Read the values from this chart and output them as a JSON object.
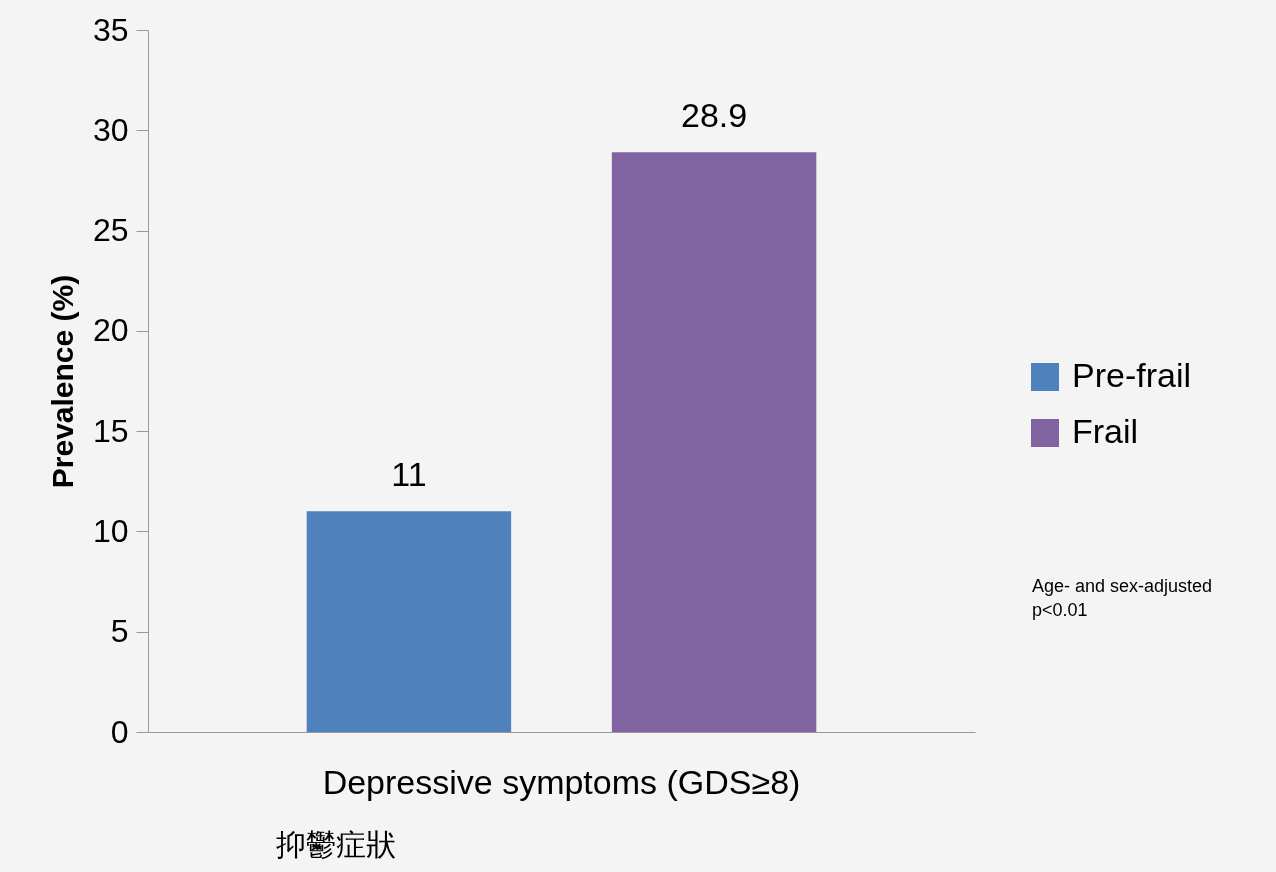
{
  "chart_data": {
    "type": "bar",
    "ylabel": "Prevalence (%)",
    "xlabel": "抑鬱症狀",
    "categories": [
      "Depressive symptoms (GDS≥8)"
    ],
    "series": [
      {
        "name": "Pre-frail",
        "color": "#4f81bd",
        "values": [
          11
        ]
      },
      {
        "name": "Frail",
        "color": "#8064a2",
        "values": [
          28.9
        ]
      }
    ],
    "ylim": [
      0,
      35
    ],
    "yticks": [
      0,
      5,
      10,
      15,
      20,
      25,
      30,
      35
    ],
    "grid": false,
    "legend": "right",
    "data_labels": true,
    "annotations": [
      "Age- and sex-adjusted\np<0.01"
    ]
  }
}
